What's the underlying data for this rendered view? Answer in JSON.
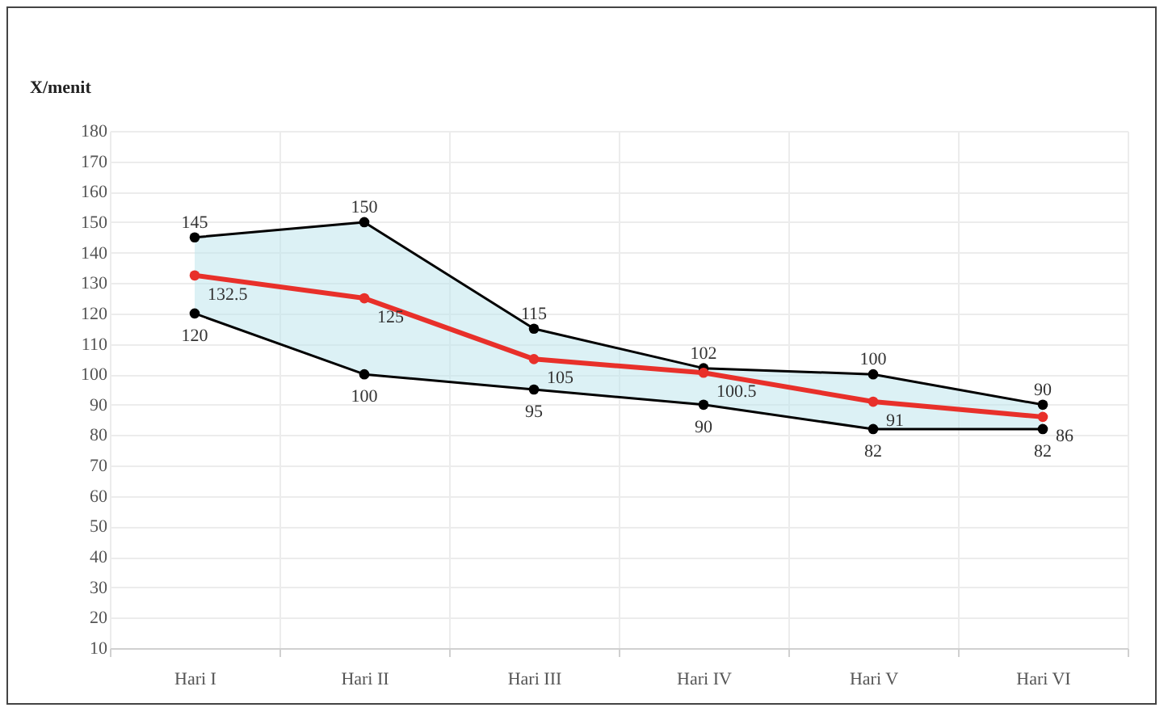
{
  "chart_data": {
    "type": "line",
    "ylabel": "X/menit",
    "categories": [
      "Hari I",
      "Hari II",
      "Hari III",
      "Hari IV",
      "Hari V",
      "Hari VI"
    ],
    "series": [
      {
        "color": "#000000",
        "values": [
          145,
          150,
          115,
          102,
          100,
          90
        ]
      },
      {
        "color": "#e8302a",
        "values": [
          132.5,
          125,
          105,
          100.5,
          91,
          86
        ],
        "lower": [
          120,
          100,
          95,
          90,
          82,
          82
        ],
        "upper": [
          145,
          150,
          115,
          102,
          100,
          90
        ]
      },
      {
        "color": "#000000",
        "values": [
          120,
          100,
          95,
          90,
          82,
          82
        ]
      }
    ],
    "ylim": [
      10,
      180
    ],
    "yticks": [
      10,
      20,
      30,
      40,
      50,
      60,
      70,
      80,
      90,
      100,
      110,
      120,
      130,
      140,
      150,
      160,
      170,
      180
    ],
    "grid": true,
    "marker": "circle",
    "line_style": "solid",
    "data_labels": true,
    "legend": false
  }
}
